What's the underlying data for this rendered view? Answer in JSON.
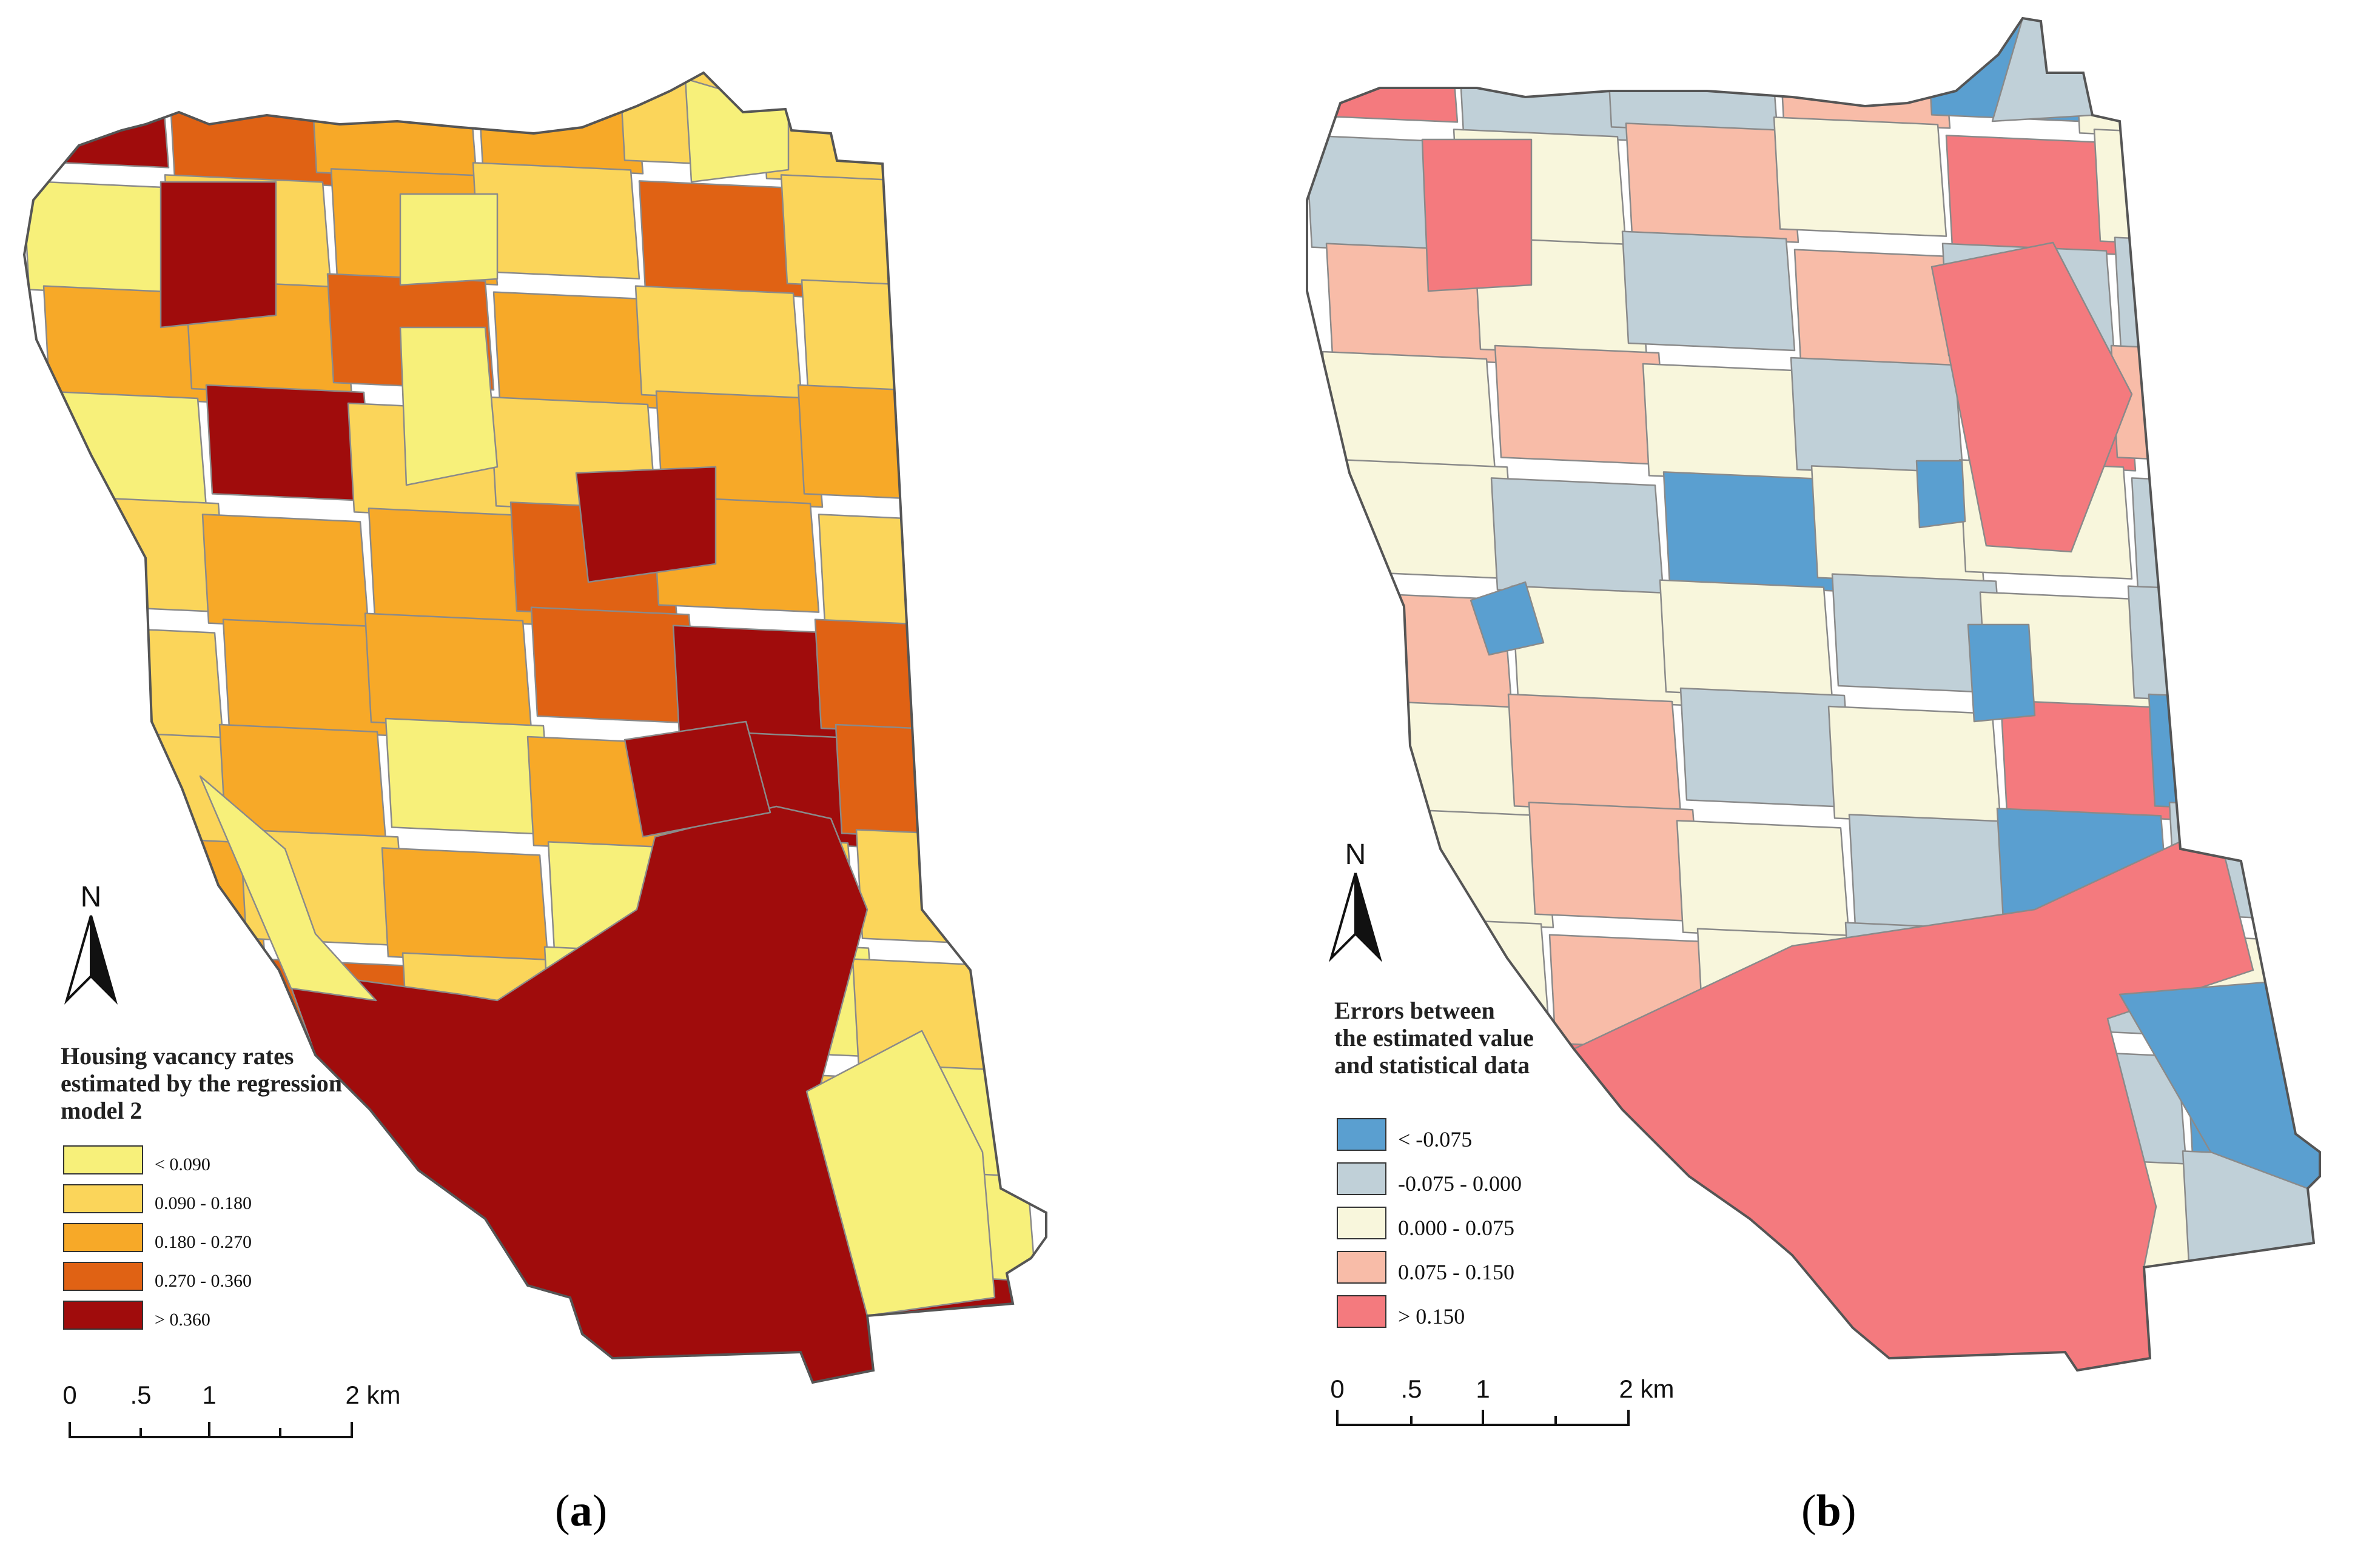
{
  "panels": [
    {
      "id": "a",
      "caption_open": "(",
      "caption_letter": "a",
      "caption_close": ")",
      "north_label": "N",
      "legend": {
        "title_lines": [
          "Housing vacancy rates",
          "estimated by the regression",
          "model 2"
        ],
        "classes": [
          {
            "label": "< 0.090",
            "color": "#f7f07a"
          },
          {
            "label": "0.090 - 0.180",
            "color": "#fbd55a"
          },
          {
            "label": "0.180 - 0.270",
            "color": "#f7a928"
          },
          {
            "label": "0.270 - 0.360",
            "color": "#e06214"
          },
          {
            "label": "> 0.360",
            "color": "#a00c0c"
          }
        ]
      },
      "scale": {
        "ticks": [
          "0",
          ".5",
          "1",
          "2 km"
        ]
      }
    },
    {
      "id": "b",
      "caption_open": "(",
      "caption_letter": "b",
      "caption_close": ")",
      "north_label": "N",
      "legend": {
        "title_lines": [
          "Errors between",
          "the estimated value",
          "and statistical data"
        ],
        "classes": [
          {
            "label": "< -0.075",
            "color": "#5a9fd0"
          },
          {
            "label": "-0.075 - 0.000",
            "color": "#c0d0d8"
          },
          {
            "label": "0.000 - 0.075",
            "color": "#f8f6dc"
          },
          {
            "label": "0.075 - 0.150",
            "color": "#f8bca8"
          },
          {
            "label": "> 0.150",
            "color": "#f47a7e"
          }
        ]
      },
      "scale": {
        "ticks": [
          "0",
          ".5",
          "1",
          "2 km"
        ]
      }
    }
  ],
  "tract_classes_a": [
    4,
    3,
    2,
    2,
    1,
    1,
    0,
    1,
    2,
    1,
    3,
    1,
    2,
    2,
    3,
    2,
    1,
    1,
    0,
    4,
    1,
    1,
    2,
    2,
    1,
    2,
    2,
    3,
    2,
    1,
    1,
    2,
    2,
    3,
    4,
    3,
    1,
    2,
    0,
    2,
    4,
    3,
    2,
    1,
    2,
    0,
    1,
    1,
    4,
    3,
    1,
    0,
    0,
    1,
    3,
    4,
    4,
    0,
    1,
    0,
    1,
    2,
    2,
    1,
    1,
    0,
    4,
    2,
    2,
    1,
    3
  ],
  "tract_classes_b": [
    4,
    1,
    1,
    3,
    0,
    2,
    1,
    2,
    3,
    2,
    4,
    2,
    3,
    2,
    1,
    3,
    1,
    1,
    2,
    3,
    2,
    1,
    4,
    3,
    2,
    1,
    0,
    2,
    2,
    1,
    3,
    2,
    2,
    1,
    2,
    1,
    2,
    3,
    1,
    2,
    4,
    0,
    2,
    3,
    2,
    1,
    0,
    1,
    2,
    3,
    2,
    1,
    1,
    2,
    2,
    4,
    4,
    1,
    1,
    0,
    3,
    2,
    1,
    2,
    2,
    1,
    4,
    1,
    2,
    0,
    1
  ]
}
